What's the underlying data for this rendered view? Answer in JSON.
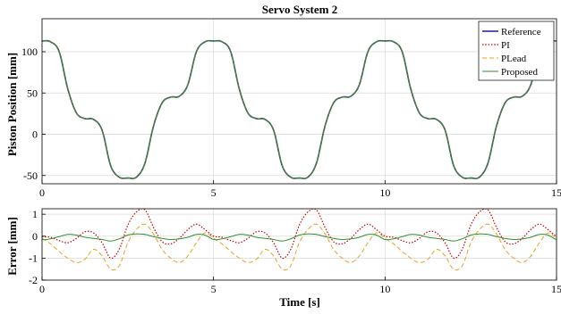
{
  "figure": {
    "title": "Servo System 2"
  },
  "chart_data": [
    {
      "type": "line",
      "title": "Servo System 2",
      "xlabel": "",
      "ylabel": "Piston Position [mm]",
      "xlim": [
        0,
        15
      ],
      "ylim": [
        -60,
        140
      ],
      "xticks": [
        0,
        5,
        10,
        15
      ],
      "yticks": [
        -50,
        0,
        50,
        100
      ],
      "xtick_labels": [
        "0",
        "5",
        "10",
        "15"
      ],
      "ytick_labels": [
        "-50",
        "0",
        "50",
        "100"
      ],
      "grid": true,
      "legend_position": "top-right",
      "x": [
        0,
        0.25,
        0.5,
        0.75,
        1.0,
        1.25,
        1.5,
        1.75,
        2.0,
        2.25,
        2.5,
        2.75,
        3.0,
        3.25,
        3.5,
        3.75,
        4.0,
        4.25,
        4.5,
        4.75,
        5.0
      ],
      "period": 5,
      "series": [
        {
          "name": "Reference",
          "color": "#1a1aa6",
          "dash": "solid",
          "values": [
            113,
            112,
            100,
            55,
            26,
            19,
            18,
            5,
            -38,
            -52,
            -53,
            -52,
            -35,
            10,
            38,
            45,
            46,
            60,
            100,
            112,
            113
          ]
        },
        {
          "name": "PI",
          "color": "#cc0000",
          "dash": "dotted",
          "values": [
            113,
            112,
            100,
            55,
            26,
            19,
            18,
            5,
            -38,
            -52,
            -53,
            -52,
            -35,
            10,
            38,
            45,
            46,
            60,
            100,
            112,
            113
          ]
        },
        {
          "name": "PLead",
          "color": "#e6a020",
          "dash": "dashed",
          "values": [
            113,
            112,
            100,
            55,
            26,
            19,
            18,
            5,
            -38,
            -52,
            -53,
            -52,
            -35,
            10,
            38,
            45,
            46,
            60,
            100,
            112,
            113
          ]
        },
        {
          "name": "Proposed",
          "color": "#2f8f2f",
          "dash": "solid",
          "values": [
            113,
            112,
            100,
            55,
            26,
            19,
            18,
            5,
            -38,
            -52,
            -53,
            -52,
            -35,
            10,
            38,
            45,
            46,
            60,
            100,
            112,
            113
          ]
        }
      ]
    },
    {
      "type": "line",
      "title": "",
      "xlabel": "Time [s]",
      "ylabel": "Error [mm]",
      "xlim": [
        0,
        15
      ],
      "ylim": [
        -2,
        1.25
      ],
      "xticks": [
        0,
        5,
        10,
        15
      ],
      "yticks": [
        -2,
        -1,
        0,
        1
      ],
      "xtick_labels": [
        "0",
        "5",
        "10",
        "15"
      ],
      "ytick_labels": [
        "-2",
        "-1",
        "0",
        "1"
      ],
      "grid": true,
      "x": [
        0,
        0.25,
        0.5,
        0.75,
        1.0,
        1.25,
        1.5,
        1.75,
        2.0,
        2.25,
        2.5,
        2.75,
        3.0,
        3.25,
        3.5,
        3.75,
        4.0,
        4.25,
        4.5,
        4.75,
        5.0
      ],
      "period": 5,
      "series": [
        {
          "name": "PI",
          "color": "#cc0000",
          "dash": "dotted",
          "values": [
            0,
            -0.05,
            -0.2,
            -0.3,
            -0.1,
            0.2,
            0.15,
            -0.3,
            -1.0,
            -0.6,
            0.5,
            1.1,
            1.2,
            0.4,
            -0.25,
            -0.35,
            -0.1,
            0.3,
            0.55,
            0.3,
            0.05
          ]
        },
        {
          "name": "PLead",
          "color": "#e6a020",
          "dash": "dashed",
          "values": [
            -0.1,
            -0.35,
            -0.7,
            -1.0,
            -1.2,
            -1.05,
            -0.6,
            -0.9,
            -1.5,
            -1.35,
            -0.3,
            0.3,
            0.55,
            0.1,
            -0.6,
            -1.0,
            -1.2,
            -0.9,
            -0.3,
            0.15,
            0.05
          ]
        },
        {
          "name": "Proposed",
          "color": "#2f8f2f",
          "dash": "solid",
          "values": [
            -0.15,
            -0.12,
            -0.02,
            0.08,
            0.05,
            -0.05,
            -0.1,
            -0.15,
            -0.22,
            -0.12,
            0.05,
            0.1,
            0.08,
            -0.02,
            -0.1,
            -0.15,
            -0.12,
            -0.05,
            0.08,
            0.05,
            -0.15
          ]
        }
      ]
    }
  ]
}
